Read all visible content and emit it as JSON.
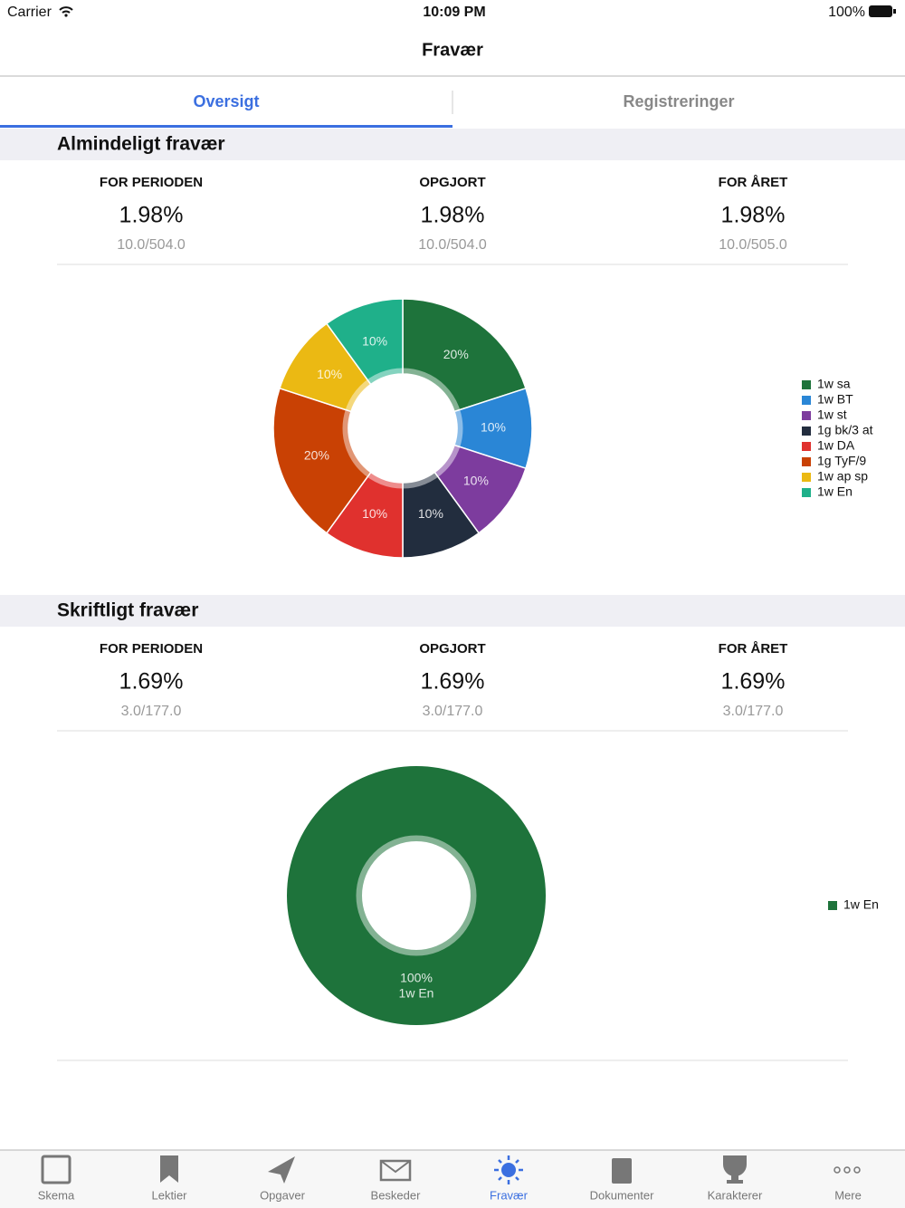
{
  "status_bar": {
    "carrier": "Carrier",
    "time": "10:09 PM",
    "battery": "100%"
  },
  "nav": {
    "title": "Fravær"
  },
  "tabs": [
    "Oversigt",
    "Registreringer"
  ],
  "sections": [
    {
      "title": "Almindeligt fravær",
      "stats": [
        {
          "label": "FOR PERIODEN",
          "value": "1.98%",
          "detail": "10.0/504.0"
        },
        {
          "label": "OPGJORT",
          "value": "1.98%",
          "detail": "10.0/504.0"
        },
        {
          "label": "FOR ÅRET",
          "value": "1.98%",
          "detail": "10.0/505.0"
        }
      ],
      "chart_data": {
        "type": "donut",
        "categories": [
          "1w sa",
          "1w BT",
          "1w st",
          "1g bk/3 at",
          "1w DA",
          "1g TyF/9",
          "1w ap sp",
          "1w En"
        ],
        "values": [
          20,
          10,
          10,
          10,
          10,
          20,
          10,
          10
        ],
        "value_labels": [
          "20%",
          "10%",
          "10%",
          "10%",
          "10%",
          "20%",
          "10%",
          "10%"
        ],
        "colors": [
          "#1e733b",
          "#2a86d6",
          "#7d3c9e",
          "#222d3e",
          "#e0312e",
          "#c94104",
          "#ebb913",
          "#1fb08a"
        ]
      }
    },
    {
      "title": "Skriftligt fravær",
      "stats": [
        {
          "label": "FOR PERIODEN",
          "value": "1.69%",
          "detail": "3.0/177.0"
        },
        {
          "label": "OPGJORT",
          "value": "1.69%",
          "detail": "3.0/177.0"
        },
        {
          "label": "FOR ÅRET",
          "value": "1.69%",
          "detail": "3.0/177.0"
        }
      ],
      "chart_data": {
        "type": "donut",
        "categories": [
          "1w En"
        ],
        "values": [
          100
        ],
        "value_labels": [
          "100%"
        ],
        "colors": [
          "#1e733b"
        ]
      }
    }
  ],
  "tab_bar": [
    "Skema",
    "Lektier",
    "Opgaver",
    "Beskeder",
    "Fravær",
    "Dokumenter",
    "Karakterer",
    "Mere"
  ]
}
